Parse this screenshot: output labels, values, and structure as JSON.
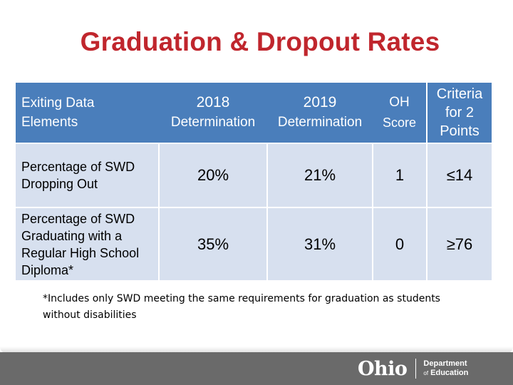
{
  "title": "Graduation & Dropout Rates",
  "table": {
    "header": {
      "col0": [
        "Exiting Data",
        "Elements"
      ],
      "col1": [
        "2018",
        "Determination"
      ],
      "col2": [
        "2019",
        "Determination"
      ],
      "col3": [
        "OH",
        "Score"
      ],
      "col4": [
        "Criteria",
        "for 2",
        "Points"
      ]
    },
    "rows": [
      {
        "label": [
          "Percentage of SWD",
          "Dropping Out"
        ],
        "y2018": "20%",
        "y2019": "21%",
        "score": "1",
        "criteria": "≤14"
      },
      {
        "label": [
          "Percentage of SWD",
          "Graduating with a",
          "Regular High School",
          "Diploma*"
        ],
        "y2018": "35%",
        "y2019": "31%",
        "score": "0",
        "criteria": "≥76"
      }
    ]
  },
  "footnote": [
    "*Includes only SWD meeting the same requirements for graduation as students",
    "without disabilities"
  ],
  "footer": {
    "logo_word": "Ohio",
    "dept_line1": "Department",
    "dept_of": "of",
    "dept_line2": "Education"
  },
  "colors": {
    "title": "#c0262d",
    "header_bg": "#4a7ebb",
    "row_bg": "#d7e0ef",
    "footer_band": "#6a6a6a"
  }
}
